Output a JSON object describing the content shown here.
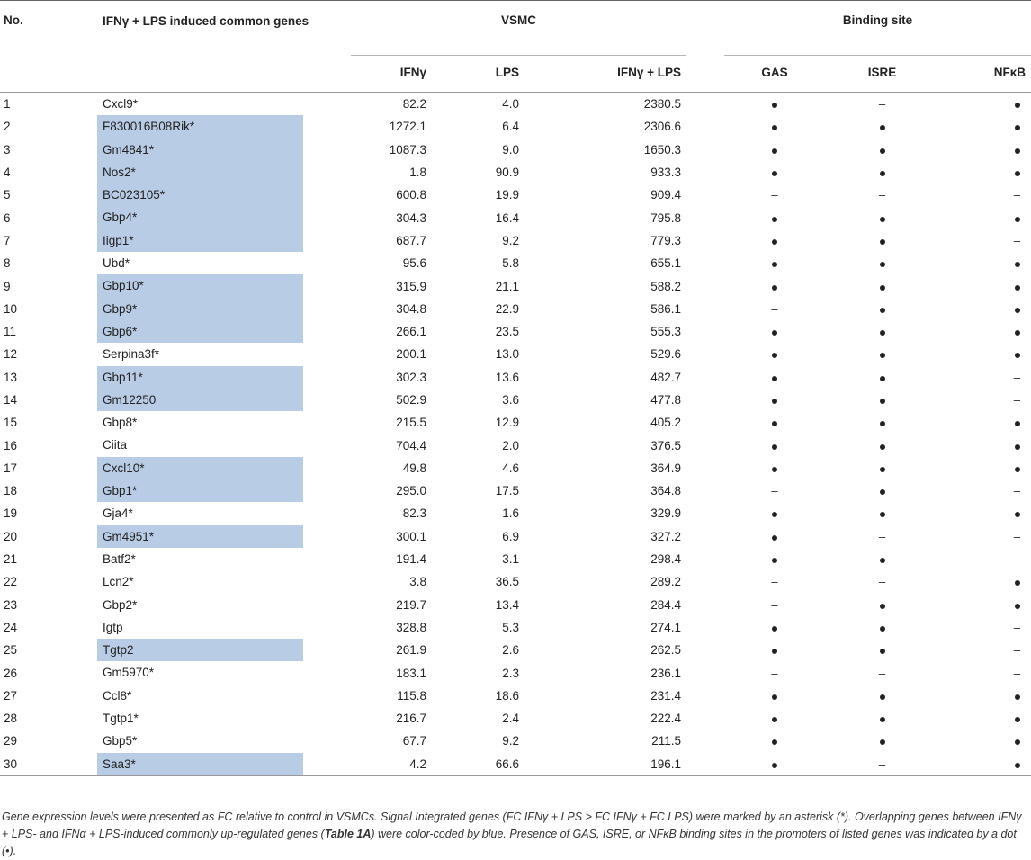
{
  "table": {
    "headers": {
      "no": "No.",
      "gene": "IFNγ + LPS induced common genes",
      "group_vsmc": "VSMC",
      "group_binding": "Binding site",
      "ifng": "IFNγ",
      "lps": "LPS",
      "ifng_lps": "IFNγ + LPS",
      "gas": "GAS",
      "isre": "ISRE",
      "nfkb": "NFκB"
    },
    "rows": [
      {
        "no": "1",
        "gene": "Cxcl9*",
        "highlight": false,
        "ifng": "82.2",
        "lps": "4.0",
        "both": "2380.5",
        "gas": true,
        "isre": false,
        "nfkb": true
      },
      {
        "no": "2",
        "gene": "F830016B08Rik*",
        "highlight": true,
        "ifng": "1272.1",
        "lps": "6.4",
        "both": "2306.6",
        "gas": true,
        "isre": true,
        "nfkb": true
      },
      {
        "no": "3",
        "gene": "Gm4841*",
        "highlight": true,
        "ifng": "1087.3",
        "lps": "9.0",
        "both": "1650.3",
        "gas": true,
        "isre": true,
        "nfkb": true
      },
      {
        "no": "4",
        "gene": "Nos2*",
        "highlight": true,
        "ifng": "1.8",
        "lps": "90.9",
        "both": "933.3",
        "gas": true,
        "isre": true,
        "nfkb": true
      },
      {
        "no": "5",
        "gene": "BC023105*",
        "highlight": true,
        "ifng": "600.8",
        "lps": "19.9",
        "both": "909.4",
        "gas": false,
        "isre": false,
        "nfkb": false
      },
      {
        "no": "6",
        "gene": "Gbp4*",
        "highlight": true,
        "ifng": "304.3",
        "lps": "16.4",
        "both": "795.8",
        "gas": true,
        "isre": true,
        "nfkb": true
      },
      {
        "no": "7",
        "gene": "Iigp1*",
        "highlight": true,
        "ifng": "687.7",
        "lps": "9.2",
        "both": "779.3",
        "gas": true,
        "isre": true,
        "nfkb": false
      },
      {
        "no": "8",
        "gene": "Ubd*",
        "highlight": false,
        "ifng": "95.6",
        "lps": "5.8",
        "both": "655.1",
        "gas": true,
        "isre": true,
        "nfkb": true
      },
      {
        "no": "9",
        "gene": "Gbp10*",
        "highlight": true,
        "ifng": "315.9",
        "lps": "21.1",
        "both": "588.2",
        "gas": true,
        "isre": true,
        "nfkb": true
      },
      {
        "no": "10",
        "gene": "Gbp9*",
        "highlight": true,
        "ifng": "304.8",
        "lps": "22.9",
        "both": "586.1",
        "gas": false,
        "isre": true,
        "nfkb": true
      },
      {
        "no": "11",
        "gene": "Gbp6*",
        "highlight": true,
        "ifng": "266.1",
        "lps": "23.5",
        "both": "555.3",
        "gas": true,
        "isre": true,
        "nfkb": true
      },
      {
        "no": "12",
        "gene": "Serpina3f*",
        "highlight": false,
        "ifng": "200.1",
        "lps": "13.0",
        "both": "529.6",
        "gas": true,
        "isre": true,
        "nfkb": true
      },
      {
        "no": "13",
        "gene": "Gbp11*",
        "highlight": true,
        "ifng": "302.3",
        "lps": "13.6",
        "both": "482.7",
        "gas": true,
        "isre": true,
        "nfkb": false
      },
      {
        "no": "14",
        "gene": "Gm12250",
        "highlight": true,
        "ifng": "502.9",
        "lps": "3.6",
        "both": "477.8",
        "gas": true,
        "isre": true,
        "nfkb": false
      },
      {
        "no": "15",
        "gene": "Gbp8*",
        "highlight": false,
        "ifng": "215.5",
        "lps": "12.9",
        "both": "405.2",
        "gas": true,
        "isre": true,
        "nfkb": true
      },
      {
        "no": "16",
        "gene": "Ciita",
        "highlight": false,
        "ifng": "704.4",
        "lps": "2.0",
        "both": "376.5",
        "gas": true,
        "isre": true,
        "nfkb": true
      },
      {
        "no": "17",
        "gene": "Cxcl10*",
        "highlight": true,
        "ifng": "49.8",
        "lps": "4.6",
        "both": "364.9",
        "gas": true,
        "isre": true,
        "nfkb": true
      },
      {
        "no": "18",
        "gene": "Gbp1*",
        "highlight": true,
        "ifng": "295.0",
        "lps": "17.5",
        "both": "364.8",
        "gas": false,
        "isre": true,
        "nfkb": false
      },
      {
        "no": "19",
        "gene": "Gja4*",
        "highlight": false,
        "ifng": "82.3",
        "lps": "1.6",
        "both": "329.9",
        "gas": true,
        "isre": true,
        "nfkb": true
      },
      {
        "no": "20",
        "gene": "Gm4951*",
        "highlight": true,
        "ifng": "300.1",
        "lps": "6.9",
        "both": "327.2",
        "gas": true,
        "isre": false,
        "nfkb": false
      },
      {
        "no": "21",
        "gene": "Batf2*",
        "highlight": false,
        "ifng": "191.4",
        "lps": "3.1",
        "both": "298.4",
        "gas": true,
        "isre": true,
        "nfkb": false
      },
      {
        "no": "22",
        "gene": "Lcn2*",
        "highlight": false,
        "ifng": "3.8",
        "lps": "36.5",
        "both": "289.2",
        "gas": false,
        "isre": false,
        "nfkb": true
      },
      {
        "no": "23",
        "gene": "Gbp2*",
        "highlight": false,
        "ifng": "219.7",
        "lps": "13.4",
        "both": "284.4",
        "gas": false,
        "isre": true,
        "nfkb": true
      },
      {
        "no": "24",
        "gene": "Igtp",
        "highlight": false,
        "ifng": "328.8",
        "lps": "5.3",
        "both": "274.1",
        "gas": true,
        "isre": true,
        "nfkb": false
      },
      {
        "no": "25",
        "gene": "Tgtp2",
        "highlight": true,
        "ifng": "261.9",
        "lps": "2.6",
        "both": "262.5",
        "gas": true,
        "isre": true,
        "nfkb": false
      },
      {
        "no": "26",
        "gene": "Gm5970*",
        "highlight": false,
        "ifng": "183.1",
        "lps": "2.3",
        "both": "236.1",
        "gas": false,
        "isre": false,
        "nfkb": false
      },
      {
        "no": "27",
        "gene": "Ccl8*",
        "highlight": false,
        "ifng": "115.8",
        "lps": "18.6",
        "both": "231.4",
        "gas": true,
        "isre": true,
        "nfkb": true
      },
      {
        "no": "28",
        "gene": "Tgtp1*",
        "highlight": false,
        "ifng": "216.7",
        "lps": "2.4",
        "both": "222.4",
        "gas": true,
        "isre": true,
        "nfkb": true
      },
      {
        "no": "29",
        "gene": "Gbp5*",
        "highlight": false,
        "ifng": "67.7",
        "lps": "9.2",
        "both": "211.5",
        "gas": true,
        "isre": true,
        "nfkb": true
      },
      {
        "no": "30",
        "gene": "Saa3*",
        "highlight": true,
        "ifng": "4.2",
        "lps": "66.6",
        "both": "196.1",
        "gas": true,
        "isre": false,
        "nfkb": true
      }
    ],
    "highlight_color": "#b9cce5"
  },
  "footnote": {
    "p1": "Gene expression levels were presented as FC relative to control in VSMCs. Signal Integrated genes (FC IFNγ + LPS > FC IFNγ + FC LPS) were marked by an asterisk (*). Overlapping genes between IFNγ + LPS- and IFNα + LPS-induced commonly up-regulated genes (",
    "ref": "Table 1A",
    "p2": ") were color-coded by blue. Presence of GAS, ISRE, or NFκB binding sites in the promoters of listed genes was indicated by a dot (•)."
  }
}
